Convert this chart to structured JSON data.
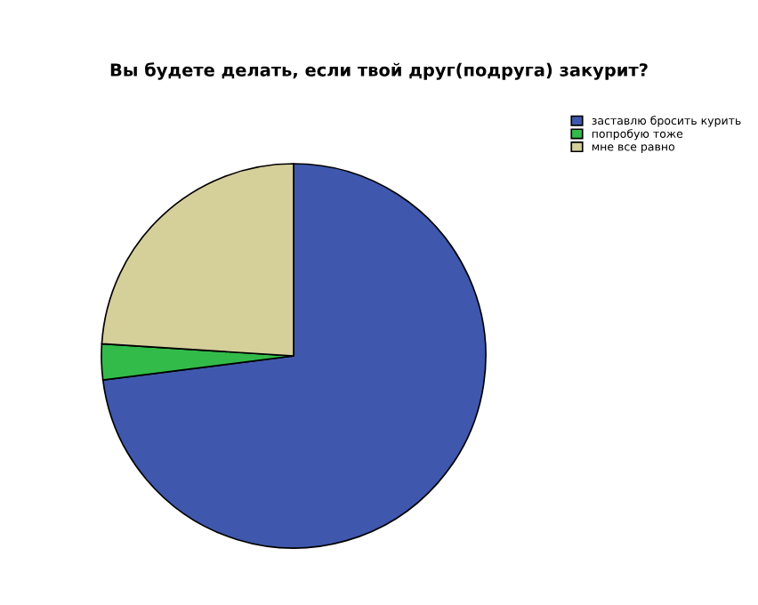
{
  "chart_data": {
    "type": "pie",
    "title": "Вы будете делать, если твой друг(подруга) закурит?",
    "categories": [
      "заставлю бросить курить",
      "попробую тоже",
      "мне все равно"
    ],
    "values": [
      73,
      3,
      24
    ],
    "colors": [
      "#3f58ad",
      "#33bb4a",
      "#d5cf9a"
    ],
    "legend": "top right"
  }
}
